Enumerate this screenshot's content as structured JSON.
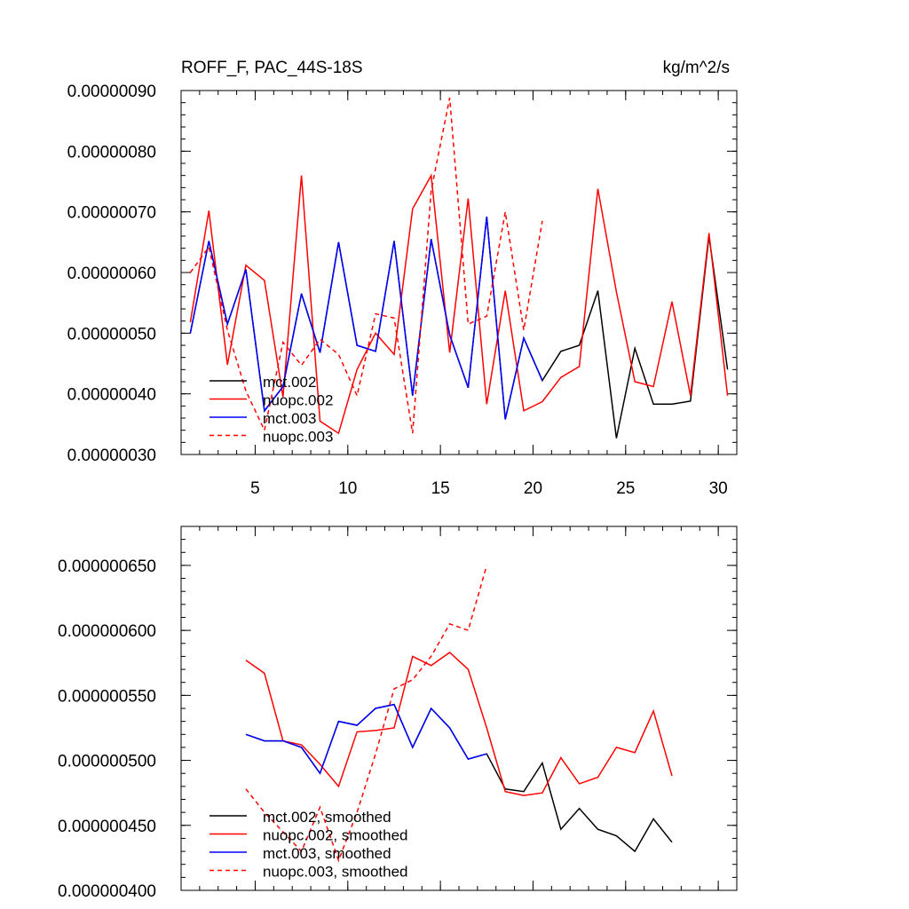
{
  "chart_data": [
    {
      "type": "line",
      "title": "ROFF_F, PAC_44S-18S",
      "units": "kg/m^2/s",
      "xlim": [
        1,
        31
      ],
      "ylim": [
        3e-07,
        9e-07
      ],
      "x_ticks": [
        5,
        10,
        15,
        20,
        25,
        30
      ],
      "x_tick_labels": [
        "5",
        "10",
        "15",
        "20",
        "25",
        "30"
      ],
      "y_ticks": [
        3e-07,
        4e-07,
        5e-07,
        6e-07,
        7e-07,
        8e-07,
        9e-07
      ],
      "y_tick_labels": [
        "0.00000030",
        "0.00000040",
        "0.00000050",
        "0.00000060",
        "0.00000070",
        "0.00000080",
        "0.00000090"
      ],
      "legend_position": "bottom-left",
      "series": [
        {
          "name": "mct.002",
          "color": "#000000",
          "dash": "solid",
          "x": [
            1.5,
            2.5,
            3.5,
            4.5,
            5.5,
            6.5,
            7.5,
            8.5,
            9.5,
            10.5,
            11.5,
            12.5,
            13.5,
            14.5,
            15.5,
            16.5,
            17.5,
            18.5,
            19.5,
            20.5,
            21.5,
            22.5,
            23.5,
            24.5,
            25.5,
            26.5,
            27.5,
            28.5,
            29.5,
            30.5
          ],
          "values": [
            5e-07,
            6.52e-07,
            5.15e-07,
            6.05e-07,
            3.72e-07,
            4.12e-07,
            5.65e-07,
            4.68e-07,
            6.5e-07,
            4.8e-07,
            4.7e-07,
            6.52e-07,
            3.97e-07,
            6.55e-07,
            4.97e-07,
            4.1e-07,
            6.92e-07,
            3.58e-07,
            4.92e-07,
            4.22e-07,
            4.7e-07,
            4.8e-07,
            5.7e-07,
            3.27e-07,
            4.75e-07,
            3.83e-07,
            3.83e-07,
            3.88e-07,
            6.6e-07,
            4.4e-07
          ]
        },
        {
          "name": "nuopc.002",
          "color": "#ff0000",
          "dash": "solid",
          "x": [
            1.5,
            2.5,
            3.5,
            4.5,
            5.5,
            6.5,
            7.5,
            8.5,
            9.5,
            10.5,
            11.5,
            12.5,
            13.5,
            14.5,
            15.5,
            16.5,
            17.5,
            18.5,
            19.5,
            20.5,
            21.5,
            22.5,
            23.5,
            24.5,
            25.5,
            26.5,
            27.5,
            28.5,
            29.5,
            30.5
          ],
          "values": [
            5.18e-07,
            7.02e-07,
            4.48e-07,
            6.12e-07,
            5.87e-07,
            3.95e-07,
            7.6e-07,
            3.55e-07,
            3.35e-07,
            4.4e-07,
            5e-07,
            4.65e-07,
            7.05e-07,
            7.6e-07,
            4.68e-07,
            7.22e-07,
            3.83e-07,
            5.7e-07,
            3.72e-07,
            3.87e-07,
            4.27e-07,
            4.45e-07,
            7.38e-07,
            5.68e-07,
            4.2e-07,
            4.12e-07,
            5.52e-07,
            3.97e-07,
            6.65e-07,
            3.97e-07
          ]
        },
        {
          "name": "mct.003",
          "color": "#0000ff",
          "dash": "solid",
          "x": [
            1.5,
            2.5,
            3.5,
            4.5,
            5.5,
            6.5,
            7.5,
            8.5,
            9.5,
            10.5,
            11.5,
            12.5,
            13.5,
            14.5,
            15.5,
            16.5,
            17.5,
            18.5,
            19.5,
            20.5
          ],
          "values": [
            5e-07,
            6.52e-07,
            5.15e-07,
            6.05e-07,
            3.72e-07,
            4.12e-07,
            5.65e-07,
            4.68e-07,
            6.5e-07,
            4.8e-07,
            4.7e-07,
            6.52e-07,
            3.97e-07,
            6.55e-07,
            4.97e-07,
            4.1e-07,
            6.92e-07,
            3.58e-07,
            4.92e-07,
            4.22e-07
          ]
        },
        {
          "name": "nuopc.003",
          "color": "#ff0000",
          "dash": "dashed",
          "x": [
            1.5,
            2.5,
            3.5,
            4.5,
            5.5,
            6.5,
            7.5,
            8.5,
            9.5,
            10.5,
            11.5,
            12.5,
            13.5,
            14.5,
            15.5,
            16.5,
            17.5,
            18.5,
            19.5,
            20.5
          ],
          "values": [
            6e-07,
            6.42e-07,
            5.05e-07,
            4.05e-07,
            3.4e-07,
            4.85e-07,
            4.47e-07,
            4.9e-07,
            4.65e-07,
            3.97e-07,
            5.32e-07,
            5.25e-07,
            3.35e-07,
            7.35e-07,
            8.88e-07,
            5.15e-07,
            5.28e-07,
            7e-07,
            5.05e-07,
            6.85e-07
          ]
        }
      ]
    },
    {
      "type": "line",
      "xlim": [
        1,
        31
      ],
      "ylim": [
        4e-07,
        6.8e-07
      ],
      "x_ticks": [
        5,
        10,
        15,
        20,
        25,
        30
      ],
      "y_ticks": [
        4e-07,
        4.5e-07,
        5e-07,
        5.5e-07,
        6e-07,
        6.5e-07
      ],
      "y_tick_labels": [
        "0.000000400",
        "0.000000450",
        "0.000000500",
        "0.000000550",
        "0.000000600",
        "0.000000650"
      ],
      "legend_position": "bottom-left",
      "series": [
        {
          "name": "mct.002, smoothed",
          "color": "#000000",
          "dash": "solid",
          "x": [
            4.5,
            5.5,
            6.5,
            7.5,
            8.5,
            9.5,
            10.5,
            11.5,
            12.5,
            13.5,
            14.5,
            15.5,
            16.5,
            17.5,
            18.5,
            19.5,
            20.5,
            21.5,
            22.5,
            23.5,
            24.5,
            25.5,
            26.5,
            27.5
          ],
          "values": [
            5.2e-07,
            5.15e-07,
            5.15e-07,
            5.1e-07,
            4.9e-07,
            5.3e-07,
            5.27e-07,
            5.4e-07,
            5.43e-07,
            5.1e-07,
            5.4e-07,
            5.25e-07,
            5.01e-07,
            5.05e-07,
            4.78e-07,
            4.76e-07,
            4.98e-07,
            4.47e-07,
            4.63e-07,
            4.47e-07,
            4.42e-07,
            4.3e-07,
            4.55e-07,
            4.37e-07
          ]
        },
        {
          "name": "nuopc.002, smoothed",
          "color": "#ff0000",
          "dash": "solid",
          "x": [
            4.5,
            5.5,
            6.5,
            7.5,
            8.5,
            9.5,
            10.5,
            11.5,
            12.5,
            13.5,
            14.5,
            15.5,
            16.5,
            17.5,
            18.5,
            19.5,
            20.5,
            21.5,
            22.5,
            23.5,
            24.5,
            25.5,
            26.5,
            27.5
          ],
          "values": [
            5.77e-07,
            5.67e-07,
            5.15e-07,
            5.12e-07,
            4.97e-07,
            4.8e-07,
            5.22e-07,
            5.23e-07,
            5.25e-07,
            5.8e-07,
            5.73e-07,
            5.83e-07,
            5.7e-07,
            5.25e-07,
            4.76e-07,
            4.73e-07,
            4.75e-07,
            5.02e-07,
            4.82e-07,
            4.87e-07,
            5.1e-07,
            5.06e-07,
            5.38e-07,
            4.88e-07
          ]
        },
        {
          "name": "mct.003, smoothed",
          "color": "#0000ff",
          "dash": "solid",
          "x": [
            4.5,
            5.5,
            6.5,
            7.5,
            8.5,
            9.5,
            10.5,
            11.5,
            12.5,
            13.5,
            14.5,
            15.5,
            16.5,
            17.5
          ],
          "values": [
            5.2e-07,
            5.15e-07,
            5.15e-07,
            5.1e-07,
            4.9e-07,
            5.3e-07,
            5.27e-07,
            5.4e-07,
            5.43e-07,
            5.1e-07,
            5.4e-07,
            5.25e-07,
            5.01e-07,
            5.05e-07
          ]
        },
        {
          "name": "nuopc.003, smoothed",
          "color": "#ff0000",
          "dash": "dashed",
          "x": [
            4.5,
            5.5,
            6.5,
            7.5,
            8.5,
            9.5,
            10.5,
            11.5,
            12.5,
            13.5,
            14.5,
            15.5,
            16.5,
            17.5
          ],
          "values": [
            4.78e-07,
            4.6e-07,
            4.45e-07,
            4.3e-07,
            4.64e-07,
            4.23e-07,
            4.6e-07,
            5.05e-07,
            5.55e-07,
            5.62e-07,
            5.8e-07,
            6.05e-07,
            6e-07,
            6.5e-07
          ]
        }
      ]
    }
  ]
}
